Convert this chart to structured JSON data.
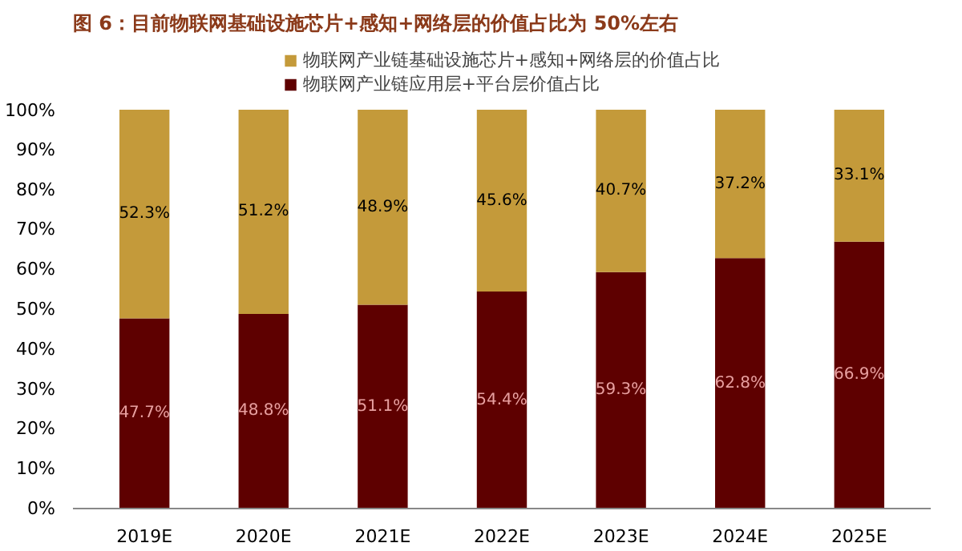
{
  "chart_data": {
    "type": "bar",
    "stacked": true,
    "title": "图 6：目前物联网基础设施芯片+感知+网络层的价值占比为 50%左右",
    "categories": [
      "2019E",
      "2020E",
      "2021E",
      "2022E",
      "2023E",
      "2024E",
      "2025E"
    ],
    "series": [
      {
        "name": "物联网产业链应用层+平台层价值占比",
        "color": "#5e0000",
        "values": [
          47.7,
          48.8,
          51.1,
          54.4,
          59.3,
          62.8,
          66.9
        ],
        "value_labels": [
          "47.7%",
          "48.8%",
          "51.1%",
          "54.4%",
          "59.3%",
          "62.8%",
          "66.9%"
        ]
      },
      {
        "name": "物联网产业链基础设施芯片+感知+网络层的价值占比",
        "color": "#c49a3a",
        "values": [
          52.3,
          51.2,
          48.9,
          45.6,
          40.7,
          37.2,
          33.1
        ],
        "value_labels": [
          "52.3%",
          "51.2%",
          "48.9%",
          "45.6%",
          "40.7%",
          "37.2%",
          "33.1%"
        ]
      }
    ],
    "ylim": [
      0,
      100
    ],
    "yticks": [
      {
        "value": 0,
        "label": "0%"
      },
      {
        "value": 10,
        "label": "10%"
      },
      {
        "value": 20,
        "label": "20%"
      },
      {
        "value": 30,
        "label": "30%"
      },
      {
        "value": 40,
        "label": "40%"
      },
      {
        "value": 50,
        "label": "50%"
      },
      {
        "value": 60,
        "label": "60%"
      },
      {
        "value": 70,
        "label": "70%"
      },
      {
        "value": 80,
        "label": "80%"
      },
      {
        "value": 90,
        "label": "90%"
      },
      {
        "value": 100,
        "label": "100%"
      }
    ],
    "legend": "top",
    "grid": false
  }
}
